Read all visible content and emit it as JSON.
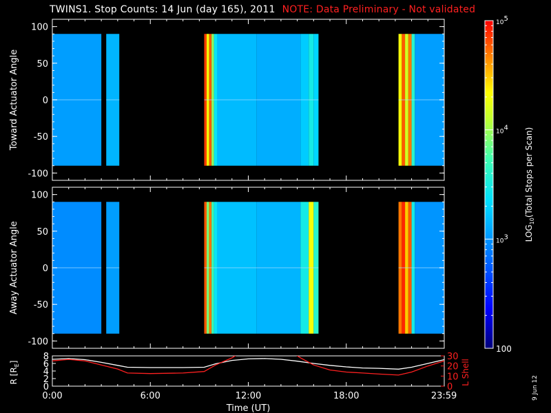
{
  "title": {
    "main": "TWINS1. Stop Counts: 14 Jun (day 165), 2011",
    "note": "NOTE: Data Preliminary - Not validated"
  },
  "datestamp": "9 Jun 12",
  "colors": {
    "note": "#ff2020",
    "l_shell": "#ff2020",
    "r_line": "#ffffff",
    "no_data": "#000000"
  },
  "chart_data": [
    {
      "type": "heatmap",
      "panel": "top",
      "ylabel": "Toward Actuator Angle",
      "ylim": [
        -110,
        110
      ],
      "yticks": [
        -100,
        -50,
        0,
        50,
        100
      ],
      "data_yrange": [
        -90,
        90
      ],
      "xlim": [
        0,
        24
      ],
      "data_intervals_hours": [
        [
          0,
          3.0
        ],
        [
          3.3,
          4.1
        ],
        [
          9.3,
          16.3
        ],
        [
          21.2,
          24
        ]
      ],
      "colorscale": "log",
      "clim": [
        100,
        100000
      ],
      "bands": [
        {
          "x": [
            0,
            3.0
          ],
          "counts": 1100
        },
        {
          "x": [
            3.3,
            4.1
          ],
          "counts": 1400
        },
        {
          "x": [
            9.3,
            9.45
          ],
          "counts": 70000
        },
        {
          "x": [
            9.45,
            9.6
          ],
          "counts": 20000
        },
        {
          "x": [
            9.6,
            9.75
          ],
          "counts": 60000
        },
        {
          "x": [
            9.75,
            9.9
          ],
          "counts": 9000
        },
        {
          "x": [
            9.9,
            10.1
          ],
          "counts": 2500
        },
        {
          "x": [
            10.1,
            12.5
          ],
          "counts": 1500
        },
        {
          "x": [
            12.5,
            15.2
          ],
          "counts": 1300
        },
        {
          "x": [
            15.2,
            15.7
          ],
          "counts": 1800
        },
        {
          "x": [
            15.7,
            16.0
          ],
          "counts": 3000
        },
        {
          "x": [
            16.0,
            16.3
          ],
          "counts": 2000
        },
        {
          "x": [
            21.2,
            21.4
          ],
          "counts": 20000
        },
        {
          "x": [
            21.4,
            21.6
          ],
          "counts": 60000
        },
        {
          "x": [
            21.6,
            21.8
          ],
          "counts": 15000
        },
        {
          "x": [
            21.8,
            22.0
          ],
          "counts": 50000
        },
        {
          "x": [
            22.0,
            22.2
          ],
          "counts": 4000
        },
        {
          "x": [
            22.2,
            24.0
          ],
          "counts": 1100
        }
      ]
    },
    {
      "type": "heatmap",
      "panel": "middle",
      "ylabel": "Away Actuator Angle",
      "ylim": [
        -110,
        110
      ],
      "yticks": [
        -100,
        -50,
        0,
        50,
        100
      ],
      "data_yrange": [
        -90,
        90
      ],
      "xlim": [
        0,
        24
      ],
      "data_intervals_hours": [
        [
          0,
          3.0
        ],
        [
          3.3,
          4.1
        ],
        [
          9.3,
          16.3
        ],
        [
          21.2,
          24
        ]
      ],
      "colorscale": "log",
      "clim": [
        100,
        100000
      ],
      "bands": [
        {
          "x": [
            0,
            3.0
          ],
          "counts": 900
        },
        {
          "x": [
            3.3,
            4.1
          ],
          "counts": 1100
        },
        {
          "x": [
            9.3,
            9.45
          ],
          "counts": 60000
        },
        {
          "x": [
            9.45,
            9.6
          ],
          "counts": 8000
        },
        {
          "x": [
            9.6,
            9.75
          ],
          "counts": 50000
        },
        {
          "x": [
            9.75,
            9.9
          ],
          "counts": 5000
        },
        {
          "x": [
            9.9,
            10.1
          ],
          "counts": 2500
        },
        {
          "x": [
            10.1,
            12.5
          ],
          "counts": 1600
        },
        {
          "x": [
            12.5,
            15.2
          ],
          "counts": 1400
        },
        {
          "x": [
            15.2,
            15.7
          ],
          "counts": 3000
        },
        {
          "x": [
            15.7,
            16.0
          ],
          "counts": 20000
        },
        {
          "x": [
            16.0,
            16.3
          ],
          "counts": 4000
        },
        {
          "x": [
            21.2,
            21.4
          ],
          "counts": 50000
        },
        {
          "x": [
            21.4,
            21.6
          ],
          "counts": 80000
        },
        {
          "x": [
            21.6,
            21.8
          ],
          "counts": 30000
        },
        {
          "x": [
            21.8,
            22.0
          ],
          "counts": 60000
        },
        {
          "x": [
            22.0,
            22.2
          ],
          "counts": 3000
        },
        {
          "x": [
            22.2,
            24.0
          ],
          "counts": 1000
        }
      ]
    },
    {
      "type": "line",
      "panel": "bottom",
      "ylabel_left": "R [RE]",
      "ylabel_right": "L Shell",
      "ylim_left": [
        0,
        8
      ],
      "yticks_left": [
        0,
        2,
        4,
        6,
        8
      ],
      "ylim_right": [
        0,
        30
      ],
      "yticks_right": [
        0,
        10,
        20,
        30
      ],
      "xlabel": "Time (UT)",
      "xlim": [
        0,
        24
      ],
      "xticks": [
        {
          "value": 0,
          "label": "0:00"
        },
        {
          "value": 6,
          "label": "6:00"
        },
        {
          "value": 12,
          "label": "12:00"
        },
        {
          "value": 18,
          "label": "18:00"
        },
        {
          "value": 23.983,
          "label": "23:59"
        }
      ],
      "series": [
        {
          "axis": "left",
          "color": "#ffffff",
          "x": [
            0,
            1,
            2,
            3,
            4,
            4.6,
            6,
            8,
            9.3,
            10,
            11,
            12,
            13,
            14,
            15,
            16,
            17,
            18,
            19,
            20,
            21.2,
            22,
            23,
            24
          ],
          "y": [
            7.1,
            7.3,
            7.0,
            6.3,
            5.5,
            5.0,
            4.9,
            4.9,
            5.0,
            5.9,
            6.8,
            7.2,
            7.3,
            7.1,
            6.6,
            6.0,
            5.5,
            5.1,
            4.8,
            4.7,
            4.5,
            5.0,
            6.0,
            7.0
          ]
        },
        {
          "axis": "right",
          "color": "#ff2020",
          "x": [
            0,
            1,
            2,
            3,
            4,
            4.6,
            6,
            8,
            9.3,
            10,
            11,
            11.3,
            14.9,
            15.2,
            16,
            17,
            18,
            19,
            20,
            21.2,
            22,
            23,
            24
          ],
          "y": [
            25,
            26.5,
            25,
            21,
            17,
            13,
            12.5,
            13,
            14.5,
            21,
            28,
            31,
            31,
            28,
            21,
            16,
            14,
            13,
            12,
            11,
            14,
            20,
            25
          ]
        }
      ]
    },
    {
      "type": "colorbar",
      "label": "LOG10(Total Stops per Scan)",
      "scale": "log",
      "range": [
        100,
        100000
      ],
      "ticks": [
        {
          "value": 100,
          "label": "100"
        },
        {
          "value": 1000,
          "label": "10^3"
        },
        {
          "value": 10000,
          "label": "10^4"
        },
        {
          "value": 100000,
          "label": "10^5"
        }
      ]
    }
  ]
}
